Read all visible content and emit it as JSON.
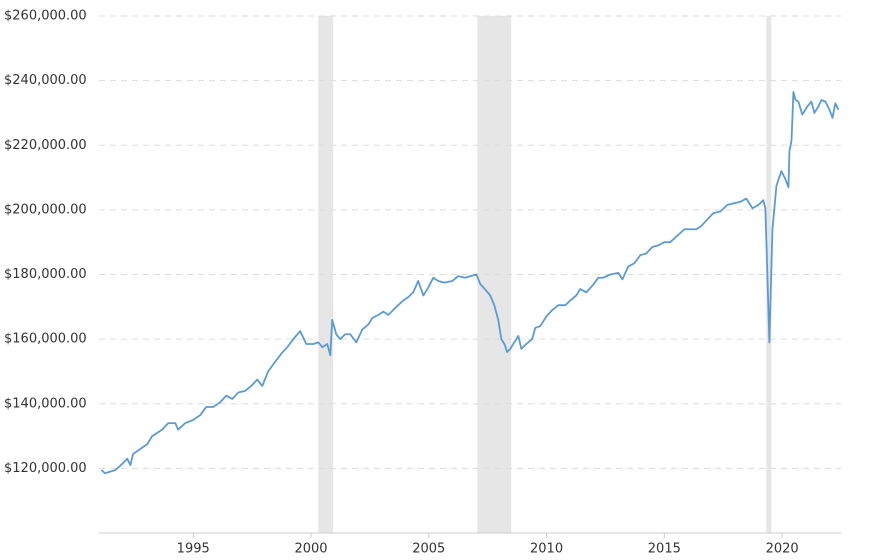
{
  "chart_data": {
    "type": "line",
    "color": "#5b9bd5",
    "shade_color": "#e6e6e6",
    "grid": true,
    "xlim": [
      1991.0,
      2022.5
    ],
    "xticks": [
      1995,
      2000,
      2005,
      2010,
      2015,
      2020
    ],
    "ylim": [
      100000,
      260000
    ],
    "yticks": [
      {
        "value": 120000,
        "label": "$120,000.00"
      },
      {
        "value": 140000,
        "label": "$140,000.00"
      },
      {
        "value": 160000,
        "label": "$160,000.00"
      },
      {
        "value": 180000,
        "label": "$180,000.00"
      },
      {
        "value": 200000,
        "label": "$200,000.00"
      },
      {
        "value": 220000,
        "label": "$220,000.00"
      },
      {
        "value": 240000,
        "label": "$240,000.00"
      },
      {
        "value": 260000,
        "label": "$260,000.00"
      }
    ],
    "shaded_ranges": [
      [
        2000.31,
        2000.94
      ],
      [
        2007.06,
        2008.5
      ],
      [
        2019.33,
        2019.54
      ]
    ],
    "x": [
      1991.1,
      1991.25,
      1991.7,
      1992.0,
      1992.2,
      1992.33,
      1992.45,
      1992.75,
      1993.05,
      1993.26,
      1993.47,
      1993.68,
      1993.94,
      1994.24,
      1994.36,
      1994.66,
      1995.0,
      1995.3,
      1995.55,
      1995.85,
      1996.15,
      1996.4,
      1996.66,
      1996.91,
      1997.21,
      1997.46,
      1997.72,
      1997.93,
      1998.18,
      1998.48,
      1998.74,
      1998.99,
      1999.25,
      1999.54,
      1999.8,
      2000.1,
      2000.31,
      2000.48,
      2000.69,
      2000.82,
      2000.9,
      2001.07,
      2001.24,
      2001.45,
      2001.67,
      2001.92,
      2002.18,
      2002.43,
      2002.6,
      2002.86,
      2003.07,
      2003.28,
      2003.49,
      2003.7,
      2003.92,
      2004.13,
      2004.34,
      2004.55,
      2004.77,
      2004.98,
      2005.19,
      2005.4,
      2005.66,
      2006.0,
      2006.25,
      2006.55,
      2006.76,
      2007.02,
      2007.19,
      2007.44,
      2007.61,
      2007.78,
      2007.95,
      2008.08,
      2008.21,
      2008.33,
      2008.46,
      2008.63,
      2008.8,
      2008.93,
      2009.14,
      2009.39,
      2009.52,
      2009.73,
      2009.99,
      2010.24,
      2010.5,
      2010.8,
      2011.01,
      2011.26,
      2011.43,
      2011.69,
      2011.94,
      2012.2,
      2012.41,
      2012.71,
      2013.05,
      2013.22,
      2013.47,
      2013.73,
      2013.98,
      2014.23,
      2014.49,
      2014.74,
      2015.0,
      2015.25,
      2015.55,
      2015.85,
      2016.1,
      2016.36,
      2016.57,
      2016.82,
      2017.08,
      2017.38,
      2017.67,
      2017.93,
      2018.23,
      2018.48,
      2018.74,
      2018.99,
      2019.2,
      2019.29,
      2019.46,
      2019.59,
      2019.76,
      2019.97,
      2020.14,
      2020.27,
      2020.31,
      2020.4,
      2020.48,
      2020.57,
      2020.69,
      2020.86,
      2021.07,
      2021.24,
      2021.37,
      2021.54,
      2021.67,
      2021.84,
      2022.01,
      2022.14,
      2022.26,
      2022.39
    ],
    "values": [
      119500,
      118500,
      119500,
      121500,
      123000,
      121000,
      124500,
      126000,
      127500,
      130000,
      131000,
      132000,
      134000,
      134000,
      132000,
      134000,
      135000,
      136500,
      139000,
      139000,
      140500,
      142500,
      141500,
      143500,
      144000,
      145500,
      147500,
      145500,
      150000,
      153000,
      155500,
      157500,
      160000,
      162500,
      158500,
      158500,
      159000,
      157500,
      158500,
      155000,
      166000,
      161500,
      160000,
      161500,
      161500,
      159000,
      163000,
      164500,
      166500,
      167500,
      168500,
      167500,
      169000,
      170500,
      172000,
      173000,
      174500,
      178000,
      173500,
      176000,
      179000,
      178000,
      177500,
      178000,
      179500,
      179000,
      179500,
      180000,
      177000,
      175000,
      173500,
      170500,
      166000,
      160000,
      158500,
      156000,
      157000,
      159000,
      161000,
      157000,
      158500,
      160000,
      163500,
      164000,
      167000,
      169000,
      170500,
      170500,
      172000,
      173500,
      175500,
      174500,
      176500,
      179000,
      179000,
      180000,
      180500,
      178500,
      182500,
      183500,
      186000,
      186500,
      188500,
      189000,
      190000,
      190000,
      192000,
      194000,
      194000,
      194000,
      195000,
      197000,
      199000,
      199500,
      201500,
      202000,
      202500,
      203500,
      200500,
      201500,
      203000,
      200500,
      159000,
      194000,
      207500,
      212000,
      209500,
      207000,
      218000,
      221500,
      236500,
      234000,
      233500,
      229500,
      232000,
      233500,
      230000,
      232000,
      234000,
      233500,
      231000,
      228500,
      233000,
      231000
    ]
  }
}
